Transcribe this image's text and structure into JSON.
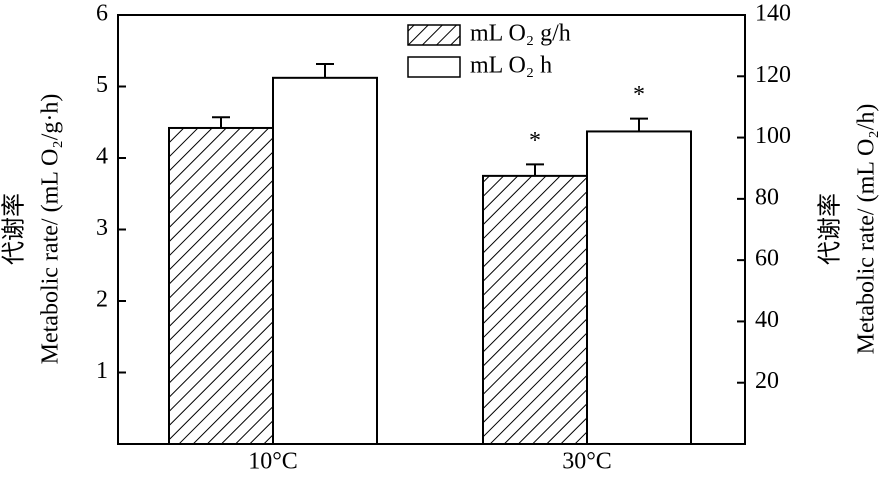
{
  "chart_data": {
    "type": "bar",
    "categories": [
      "10°C",
      "30°C"
    ],
    "series": [
      {
        "name": "mL O₂ g/h",
        "color": "#000000",
        "hatch": true,
        "axis": "y",
        "values": [
          4.42,
          3.75
        ],
        "errors": [
          0.15,
          0.16
        ]
      },
      {
        "name": "mL O₂ h",
        "color": "#ffffff",
        "hatch": false,
        "axis": "y2",
        "values": [
          119.5,
          102
        ],
        "errors": [
          4.5,
          4.2
        ]
      }
    ],
    "ylabel": [
      "代谢率",
      "Metabolic rate/ (mL O₂/g·h)"
    ],
    "y2label": [
      "代谢率",
      "Metabolic rate/ (mL O₂/h)"
    ],
    "annotations": [
      "*",
      "*"
    ],
    "ylim": [
      0,
      6
    ],
    "yticks": [
      1,
      2,
      3,
      4,
      5,
      6
    ],
    "y2lim": [
      0,
      140
    ],
    "y2ticks": [
      20,
      40,
      60,
      80,
      100,
      120,
      140
    ],
    "grid": false,
    "legend": "top"
  }
}
